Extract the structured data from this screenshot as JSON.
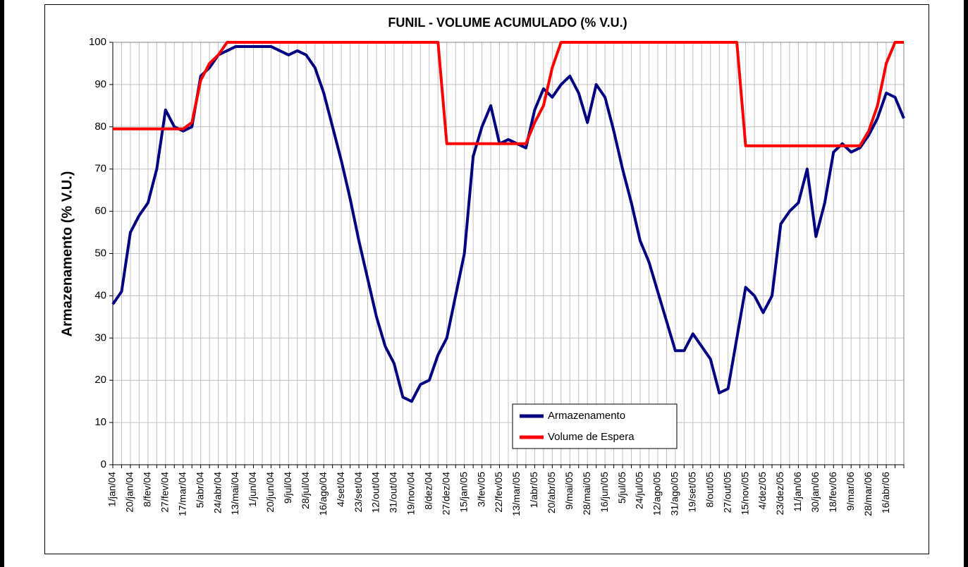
{
  "chart_data": {
    "type": "line",
    "title": "FUNIL - VOLUME ACUMULADO (% V.U.)",
    "y_label": "Armazenamento (% V.U.)",
    "categories": [
      "1/jan/04",
      null,
      "20/jan/04",
      null,
      "8/fev/04",
      null,
      "27/fev/04",
      null,
      "17/mar/04",
      null,
      "5/abr/04",
      null,
      "24/abr/04",
      null,
      "13/mai/04",
      null,
      "1/jun/04",
      null,
      "20/jun/04",
      null,
      "9/jul/04",
      null,
      "28/jul/04",
      null,
      "16/ago/04",
      null,
      "4/set/04",
      null,
      "23/set/04",
      null,
      "12/out/04",
      null,
      "31/out/04",
      null,
      "19/nov/04",
      null,
      "8/dez/04",
      null,
      "27/dez/04",
      null,
      "15/jan/05",
      null,
      "3/fev/05",
      null,
      "22/fev/05",
      null,
      "13/mar/05",
      null,
      "1/abr/05",
      null,
      "20/abr/05",
      null,
      "9/mai/05",
      null,
      "28/mai/05",
      null,
      "16/jun/05",
      null,
      "5/jul/05",
      null,
      "24/jul/05",
      null,
      "12/ago/05",
      null,
      "31/ago/05",
      null,
      "19/set/05",
      null,
      "8/out/05",
      null,
      "27/out/05",
      null,
      "15/nov/05",
      null,
      "4/dez/05",
      null,
      "23/dez/05",
      null,
      "11/jan/06",
      null,
      "30/jan/06",
      null,
      "18/fev/06",
      null,
      "9/mar/06",
      null,
      "28/mar/06",
      null,
      "16/abr/06",
      null,
      null
    ],
    "series": [
      {
        "name": "Armazenamento",
        "color": "#000080",
        "values": [
          38,
          41,
          55,
          59,
          62,
          70,
          84,
          80,
          79,
          80,
          92,
          94,
          97,
          98,
          99,
          99,
          99,
          99,
          99,
          98,
          97,
          98,
          97,
          94,
          88,
          80,
          72,
          63,
          53,
          44,
          35,
          28,
          24,
          16,
          15,
          19,
          20,
          26,
          30,
          40,
          50,
          73,
          80,
          85,
          76,
          77,
          76,
          75,
          84,
          89,
          87,
          90,
          92,
          88,
          81,
          90,
          87,
          79,
          70,
          62,
          53,
          48,
          41,
          34,
          27,
          27,
          31,
          28,
          25,
          17,
          18,
          30,
          42,
          40,
          36,
          40,
          57,
          60,
          62,
          70,
          54,
          62,
          74,
          76,
          74,
          75,
          78,
          82,
          88,
          87,
          82
        ]
      },
      {
        "name": "Volume de Espera",
        "color": "#ff0000",
        "values": [
          79.5,
          79.5,
          79.5,
          79.5,
          79.5,
          79.5,
          79.5,
          79.5,
          79.5,
          81,
          91,
          95,
          97,
          100,
          100,
          100,
          100,
          100,
          100,
          100,
          100,
          100,
          100,
          100,
          100,
          100,
          100,
          100,
          100,
          100,
          100,
          100,
          100,
          100,
          100,
          100,
          100,
          100,
          76,
          76,
          76,
          76,
          76,
          76,
          76,
          76,
          76,
          76,
          81,
          85,
          94,
          100,
          100,
          100,
          100,
          100,
          100,
          100,
          100,
          100,
          100,
          100,
          100,
          100,
          100,
          100,
          100,
          100,
          100,
          100,
          100,
          100,
          75.5,
          75.5,
          75.5,
          75.5,
          75.5,
          75.5,
          75.5,
          75.5,
          75.5,
          75.5,
          75.5,
          75.5,
          75.5,
          75.5,
          79,
          85,
          95,
          100,
          100
        ]
      }
    ],
    "ylim": [
      0,
      100
    ],
    "yticks": [
      0,
      10,
      20,
      30,
      40,
      50,
      60,
      70,
      80,
      90,
      100
    ],
    "grid": true,
    "legend": "bottom-center"
  }
}
